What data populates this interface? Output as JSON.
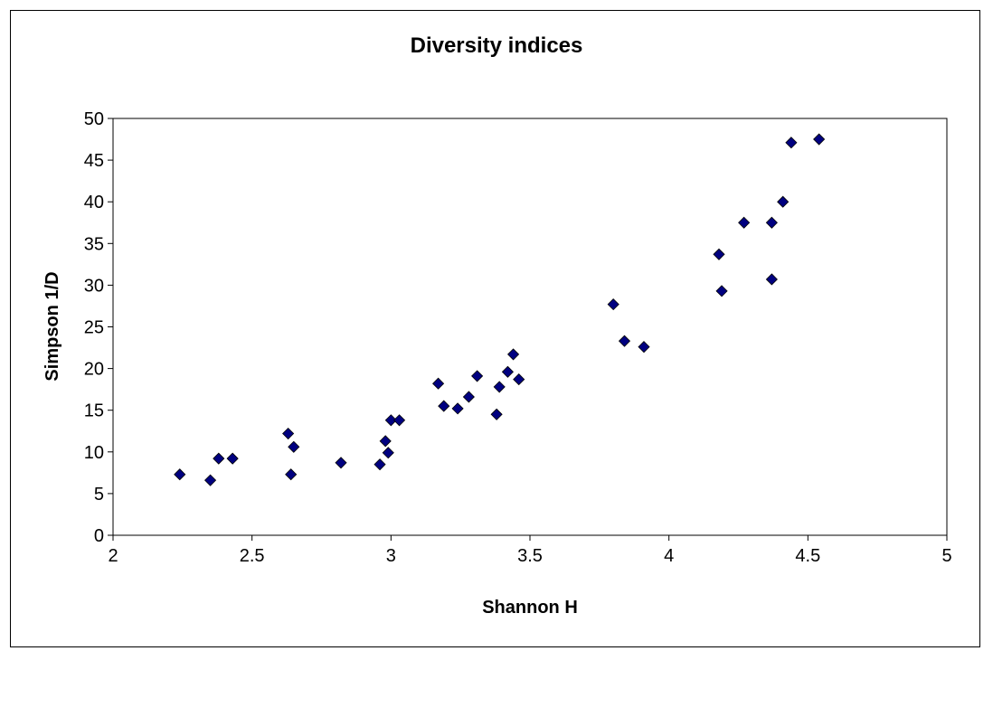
{
  "chart_data": {
    "type": "scatter",
    "title": "Diversity indices",
    "xlabel": "Shannon H",
    "ylabel": "Simpson 1/D",
    "xlim": [
      2,
      5
    ],
    "ylim": [
      0,
      50
    ],
    "xticks": [
      2,
      2.5,
      3,
      3.5,
      4,
      4.5,
      5
    ],
    "yticks": [
      0,
      5,
      10,
      15,
      20,
      25,
      30,
      35,
      40,
      45,
      50
    ],
    "grid": false,
    "legend": "none",
    "marker": "diamond",
    "marker_color": "#000080",
    "series": [
      {
        "points": [
          [
            2.24,
            7.3
          ],
          [
            2.35,
            6.6
          ],
          [
            2.38,
            9.2
          ],
          [
            2.43,
            9.2
          ],
          [
            2.63,
            12.2
          ],
          [
            2.64,
            7.3
          ],
          [
            2.65,
            10.6
          ],
          [
            2.82,
            8.7
          ],
          [
            2.96,
            8.5
          ],
          [
            2.98,
            11.3
          ],
          [
            2.99,
            9.9
          ],
          [
            3.0,
            13.8
          ],
          [
            3.03,
            13.8
          ],
          [
            3.17,
            18.2
          ],
          [
            3.19,
            15.5
          ],
          [
            3.24,
            15.2
          ],
          [
            3.28,
            16.6
          ],
          [
            3.31,
            19.1
          ],
          [
            3.38,
            14.5
          ],
          [
            3.39,
            17.8
          ],
          [
            3.42,
            19.6
          ],
          [
            3.44,
            21.7
          ],
          [
            3.46,
            18.7
          ],
          [
            3.8,
            27.7
          ],
          [
            3.84,
            23.3
          ],
          [
            3.91,
            22.6
          ],
          [
            4.18,
            33.7
          ],
          [
            4.19,
            29.3
          ],
          [
            4.27,
            37.5
          ],
          [
            4.37,
            37.5
          ],
          [
            4.37,
            30.7
          ],
          [
            4.41,
            40.0
          ],
          [
            4.44,
            47.1
          ],
          [
            4.54,
            47.5
          ]
        ]
      }
    ]
  }
}
